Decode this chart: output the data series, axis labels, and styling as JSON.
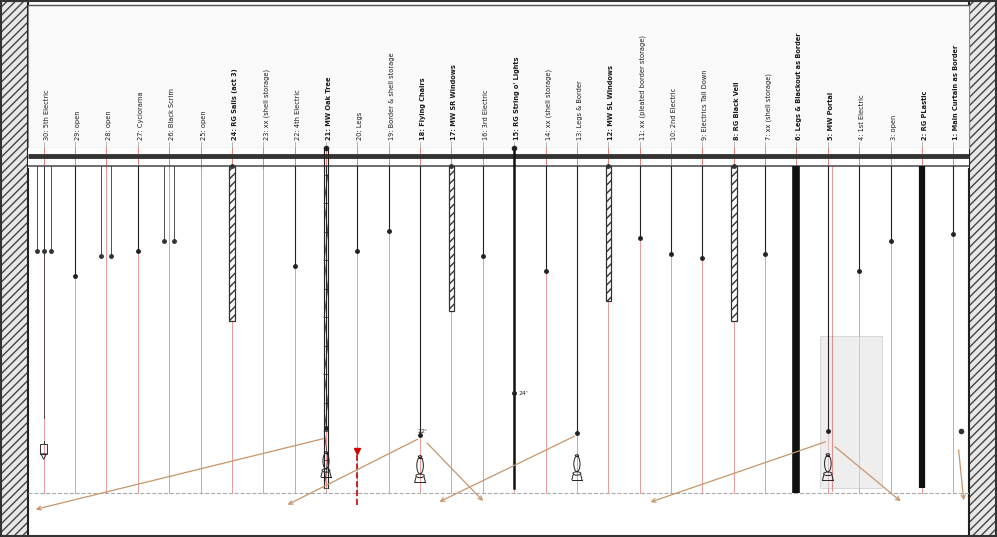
{
  "bg_color": "#ffffff",
  "line_labels": [
    "30: 5th Electric",
    "29: open",
    "28: open",
    "27: Cyclorama",
    "26: Black Scrim",
    "25: open",
    "24: RG Sails (act 3)",
    "23: xx (shell storage)",
    "22: 4th Electric",
    "21: MW Oak Tree",
    "20: Legs",
    "19: Border & shell storage",
    "18: Flying Chairs",
    "17: MW SR Windows",
    "16: 3rd Electric",
    "15: RG String o' Lights",
    "14: xx (shell storage)",
    "13: Legs & Border",
    "12: MW SL Windows",
    "11: xx (pleated border storage)",
    "10: 2nd Electric",
    "9: Electrics Tail Down",
    "8: RG Black Veil",
    "7: xx (shell storage)",
    "6: Legs & Blackout as Border",
    "5: MW Portal",
    "4: 1st Electric",
    "3: open",
    "2: RG PLastic",
    "1: Main Curtain as Border"
  ],
  "bold_labels": [
    24,
    21,
    18,
    17,
    15,
    12,
    8,
    6,
    5,
    2,
    1
  ],
  "arrow_color": "#c8956a",
  "red_line_color": "#e07070",
  "red_dash_color": "#cc0000"
}
